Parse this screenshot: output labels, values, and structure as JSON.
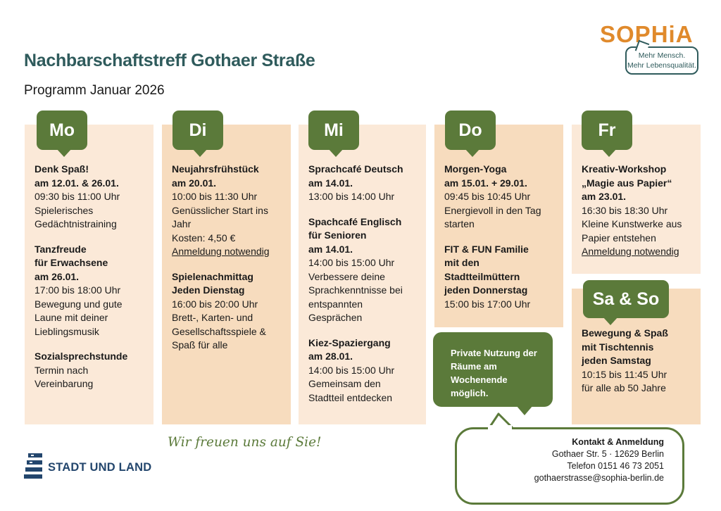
{
  "header": {
    "title": "Nachbarschaftstreff Gothaer Straße",
    "subtitle": "Programm Januar 2026"
  },
  "logo": {
    "wordmark": "SOPHiA",
    "tagline_1": "Mehr Mensch.",
    "tagline_2": "Mehr Lebensqualität."
  },
  "days": {
    "mo": "Mo",
    "di": "Di",
    "mi": "Mi",
    "do": "Do",
    "fr": "Fr",
    "we": "Sa & So"
  },
  "monday": [
    {
      "title": [
        "Denk Spaß!",
        "am 12.01. & 26.01."
      ],
      "lines": [
        "09:30 bis 11:00 Uhr",
        "Spielerisches",
        "Gedächtnistraining"
      ]
    },
    {
      "title": [
        "Tanzfreude",
        "für Erwachsene",
        "am 26.01."
      ],
      "lines": [
        "17:00 bis 18:00 Uhr",
        "Bewegung und gute",
        "Laune mit deiner",
        "Lieblingsmusik"
      ]
    },
    {
      "title": [
        "Sozialsprechstunde"
      ],
      "lines": [
        "Termin nach",
        "Vereinbarung"
      ]
    }
  ],
  "tuesday": [
    {
      "title": [
        "Neujahrsfrühstück",
        "am 20.01."
      ],
      "lines": [
        "10:00 bis 11:30 Uhr",
        "Genüsslicher Start ins",
        "Jahr",
        "Kosten: 4,50 €"
      ],
      "underline": "Anmeldung notwendig"
    },
    {
      "title": [
        "Spielenachmittag",
        "Jeden Dienstag"
      ],
      "lines": [
        "16:00 bis 20:00 Uhr",
        "Brett-, Karten- und",
        "Gesellschaftsspiele &",
        "Spaß für alle"
      ]
    }
  ],
  "wednesday": [
    {
      "title": [
        "Sprachcafé Deutsch",
        "am 14.01."
      ],
      "lines": [
        "13:00 bis 14:00 Uhr"
      ]
    },
    {
      "title": [
        "Spachcafé Englisch",
        "für Senioren",
        "am 14.01."
      ],
      "lines": [
        "14:00 bis 15:00 Uhr",
        "Verbessere deine",
        "Sprachkenntnisse bei",
        "entspannten",
        "Gesprächen"
      ]
    },
    {
      "title": [
        "Kiez-Spaziergang",
        "am 28.01."
      ],
      "lines": [
        "14:00 bis 15:00 Uhr",
        "Gemeinsam den",
        "Stadtteil entdecken"
      ]
    }
  ],
  "thursday": [
    {
      "title": [
        "Morgen-Yoga",
        "am 15.01. + 29.01."
      ],
      "lines": [
        "09:45 bis 10:45 Uhr",
        "Energievoll in den Tag",
        "starten"
      ]
    },
    {
      "title": [
        "FIT & FUN Familie",
        "mit den",
        "Stadtteilmüttern",
        "jeden Donnerstag"
      ],
      "lines": [
        "15:00 bis 17:00 Uhr"
      ]
    }
  ],
  "friday": [
    {
      "title": [
        "Kreativ-Workshop",
        "„Magie aus Papier“",
        "am 23.01."
      ],
      "lines": [
        "16:30 bis 18:30 Uhr",
        "Kleine Kunstwerke aus",
        "Papier entstehen"
      ],
      "underline": "Anmeldung notwendig"
    }
  ],
  "weekend": [
    {
      "title": [
        "Bewegung & Spaß",
        "mit Tischtennis",
        "jeden Samstag"
      ],
      "lines": [
        "10:15 bis 11:45 Uhr",
        "für alle ab 50 Jahre"
      ]
    }
  ],
  "weekend_note": [
    "Private Nutzung der",
    "Räume am",
    "Wochenende möglich."
  ],
  "contact": {
    "heading": "Kontakt & Anmeldung",
    "address": "Gothaer Str. 5  ·  12629 Berlin",
    "phone": "Telefon  0151 46 73 2051",
    "email": "gothaerstrasse@sophia-berlin.de"
  },
  "slogan": "Wir freuen uns auf Sie!",
  "partner": "STADT UND LAND",
  "colors": {
    "title": "#2f5b5c",
    "green": "#5b7a3a",
    "orange": "#e08a2c",
    "card_light": "#fbe9d8",
    "card_dark": "#f7dcbe",
    "partner_blue": "#23466d"
  }
}
